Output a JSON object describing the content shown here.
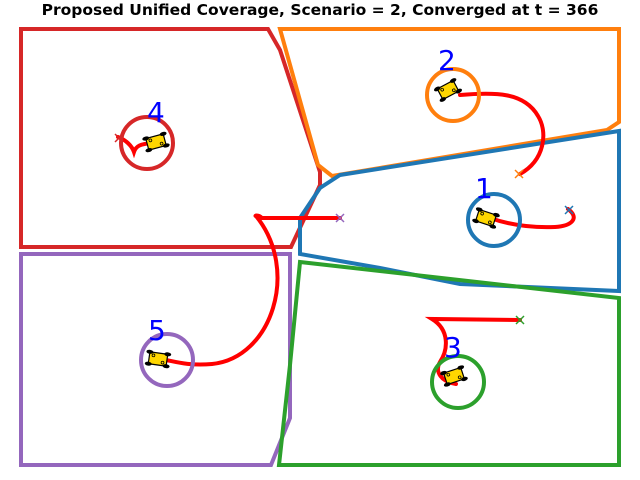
{
  "title": "Proposed Unified Coverage, Scenario = 2, Converged at t = 366",
  "colors": {
    "robot_1": "#1f77b4",
    "robot_2": "#ff7f0e",
    "robot_3": "#2ca02c",
    "robot_4": "#d62728",
    "robot_5": "#9467bd",
    "trajectory": "#ff0000",
    "label": "#0000ff",
    "robot_body": "#ffd700"
  },
  "robots": [
    {
      "id": "1",
      "label": "1",
      "icon": "quadrotor-icon"
    },
    {
      "id": "2",
      "label": "2",
      "icon": "quadrotor-icon"
    },
    {
      "id": "3",
      "label": "3",
      "icon": "quadrotor-icon"
    },
    {
      "id": "4",
      "label": "4",
      "icon": "quadrotor-icon"
    },
    {
      "id": "5",
      "label": "5",
      "icon": "quadrotor-icon"
    }
  ]
}
